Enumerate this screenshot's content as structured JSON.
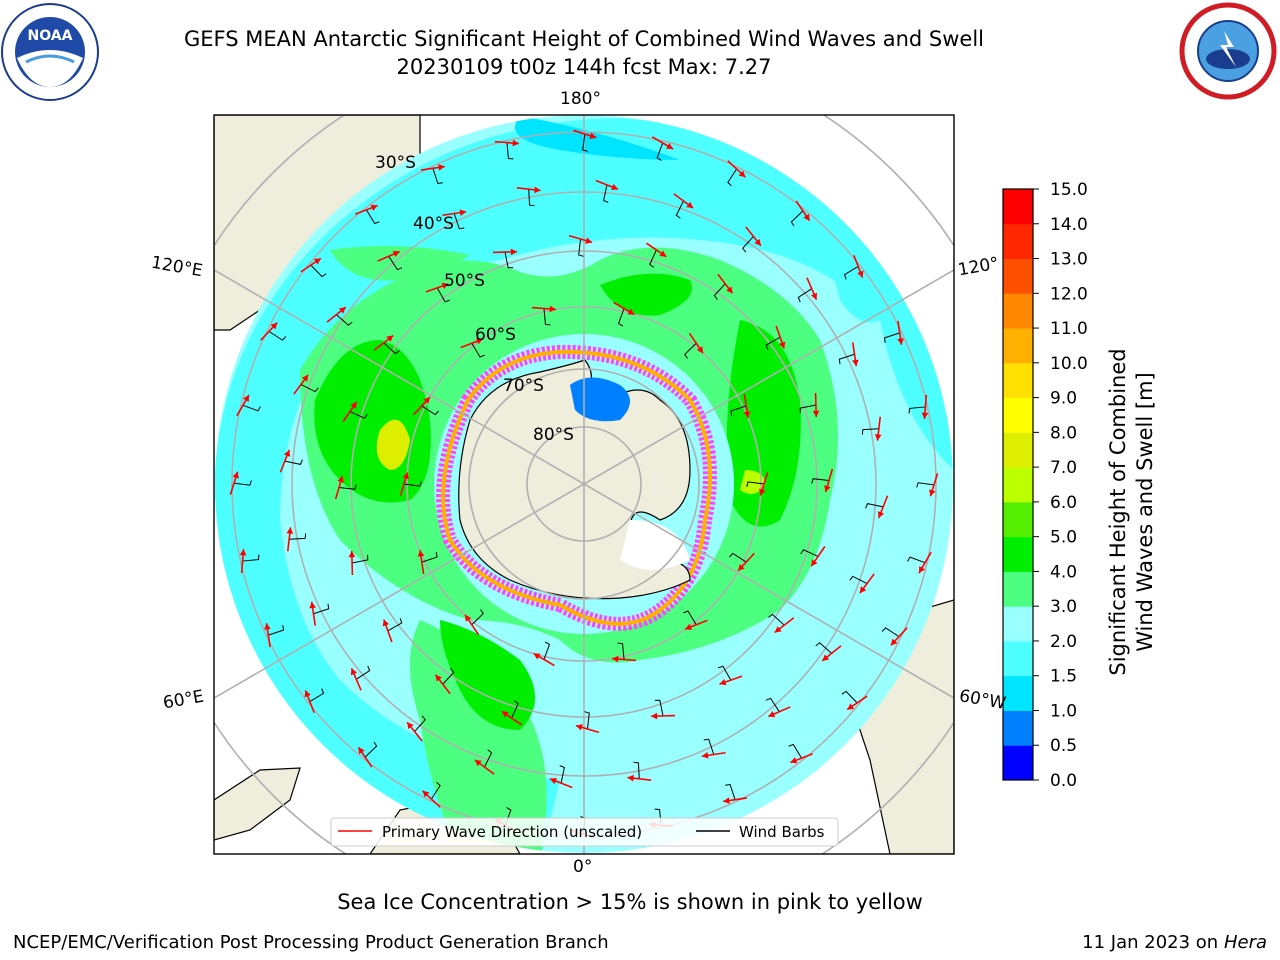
{
  "header": {
    "title_line1": "GEFS MEAN Antarctic Significant Height of Combined Wind Waves and Swell",
    "title_line2": "20230109 t00z 144h fcst   Max: 7.27"
  },
  "logos": {
    "left": "noaa-logo",
    "right": "national-weather-service-logo"
  },
  "map": {
    "projection": "south-polar-stereographic",
    "longitude_labels": {
      "top": "180°",
      "bottom": "0°",
      "left_upper": "120°E",
      "left_lower": "60°E",
      "right_upper": "120°",
      "right_lower": "60°W"
    },
    "latitude_labels": [
      "30°S",
      "40°S",
      "50°S",
      "60°S",
      "70°S",
      "80°S"
    ],
    "colors": {
      "land": "#efeddc",
      "sea_ice": "#ff44ff",
      "wave_arrow": "#ff0000",
      "wind_barb": "#000000",
      "gridline": "#b0b0b0"
    }
  },
  "legend": {
    "items": [
      {
        "label": "Primary Wave Direction (unscaled)",
        "color": "#ff0000"
      },
      {
        "label": "Wind Barbs",
        "color": "#000000"
      }
    ]
  },
  "colorbar": {
    "title_line1": "Significant Height of Combined",
    "title_line2": "Wind Waves and Swell [m]",
    "ticks": [
      "0.0",
      "0.5",
      "1.0",
      "1.5",
      "2.0",
      "3.0",
      "4.0",
      "5.0",
      "6.0",
      "7.0",
      "8.0",
      "9.0",
      "10.0",
      "11.0",
      "12.0",
      "13.0",
      "14.0",
      "15.0"
    ],
    "colors": [
      "#0000ff",
      "#0080ff",
      "#00e5ff",
      "#4dffff",
      "#99ffff",
      "#4dff80",
      "#00ee00",
      "#55ee00",
      "#bbff00",
      "#ddee00",
      "#ffff00",
      "#ffe000",
      "#ffb000",
      "#ff8800",
      "#ff5000",
      "#ff2800",
      "#ff0000"
    ]
  },
  "caption": "Sea Ice Concentration > 15% is shown in pink to yellow",
  "footer": {
    "left": "NCEP/EMC/Verification Post Processing Product Generation Branch",
    "right_date": "11 Jan 2023 on ",
    "right_machine": "Hera"
  }
}
